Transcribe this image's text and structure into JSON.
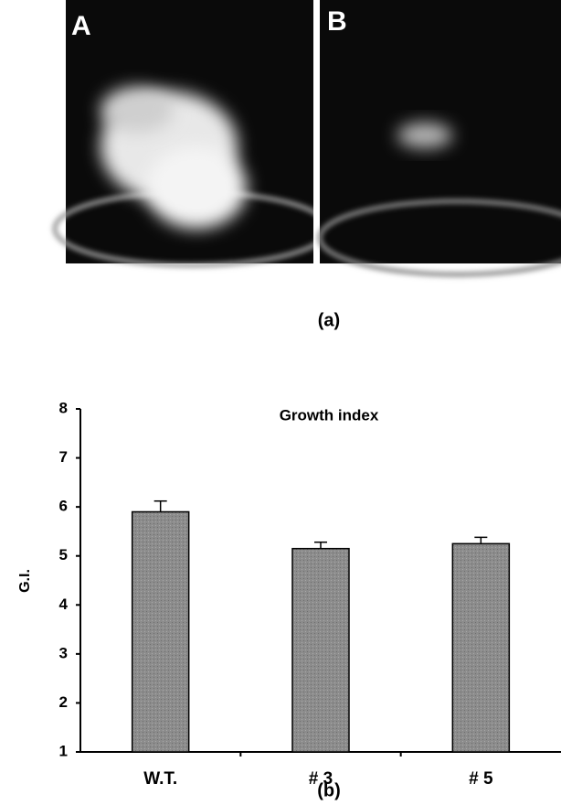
{
  "figure": {
    "panel_labels": [
      "A",
      "B"
    ],
    "captions": [
      "(a)",
      "(b)"
    ]
  },
  "chart_data": {
    "type": "bar",
    "title": "Growth index",
    "y_label": "G.I.",
    "categories": [
      "W.T.",
      "# 3",
      "# 5"
    ],
    "values": [
      5.9,
      5.15,
      5.25
    ],
    "errors": [
      0.22,
      0.13,
      0.13
    ],
    "color": "#8c8c8c",
    "ylim": [
      1,
      8
    ],
    "yticks": [
      1,
      2,
      3,
      4,
      5,
      6,
      7,
      8
    ],
    "grid": false
  }
}
